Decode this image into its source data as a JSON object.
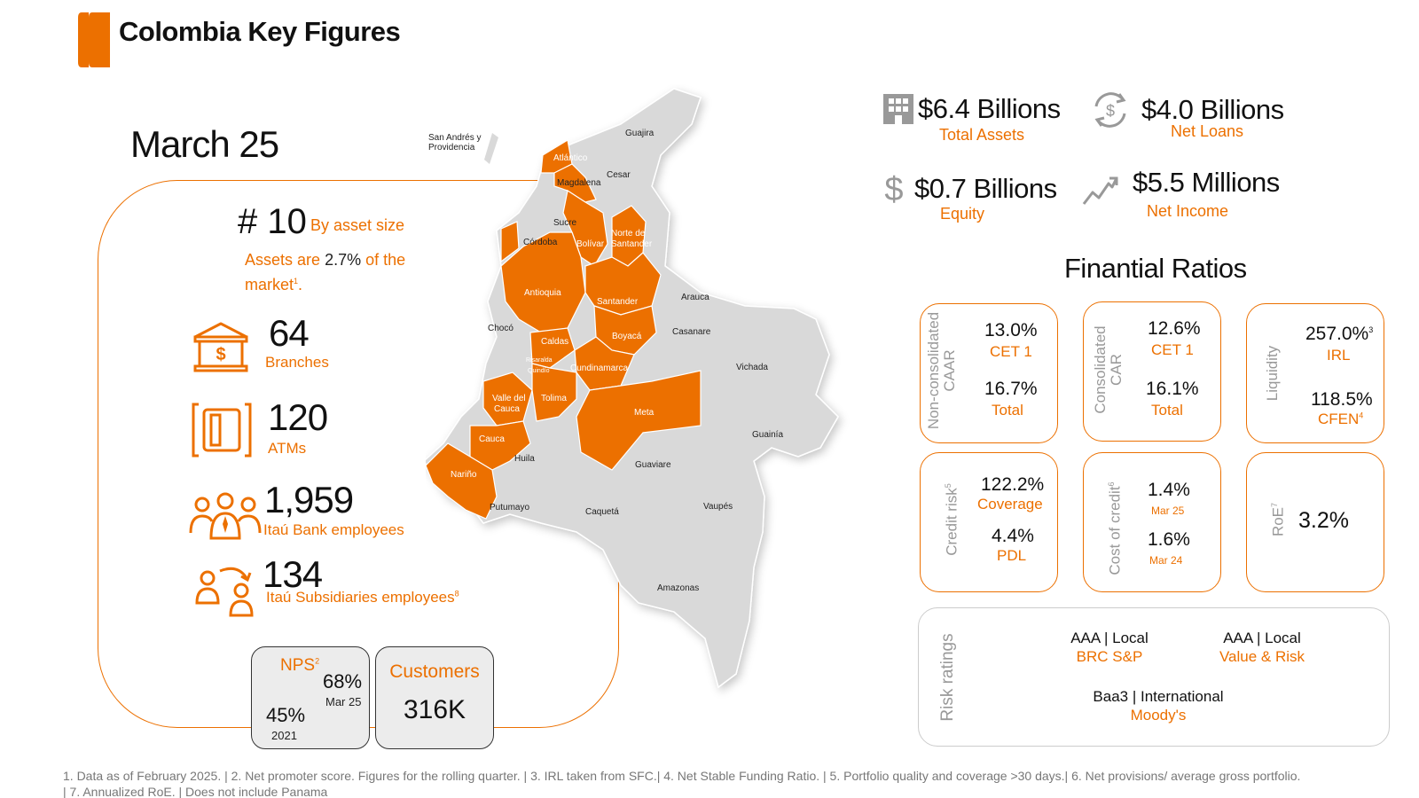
{
  "header": {
    "title": "Colombia Key Figures"
  },
  "period": "March 25",
  "ranking": {
    "rank": "# 10",
    "rank_note": "By asset size",
    "assets_prefix": "Assets are",
    "assets_value": "2.7%",
    "assets_suffix": "of the",
    "assets_line2": "market",
    "assets_note_ref": "1",
    "assets_end": "."
  },
  "branches": {
    "value": "64",
    "label": "Branches"
  },
  "atms": {
    "value": "120",
    "label": "ATMs"
  },
  "employees": {
    "value": "1,959",
    "label": "Itaú Bank employees"
  },
  "subsidiaries": {
    "value": "134",
    "label": "Itaú Subsidiaries employees",
    "note_ref": "8"
  },
  "nps": {
    "label": "NPS",
    "note_ref": "2",
    "current": "68%",
    "current_period": "Mar 25",
    "previous": "45%",
    "previous_period": "2021"
  },
  "customers": {
    "label": "Customers",
    "value": "316K"
  },
  "map": {
    "labels": [
      "San Andrés y",
      "Providencia",
      "Guajira",
      "Atlántico",
      "Magdalena",
      "Cesar",
      "Sucre",
      "Córdoba",
      "Bolívar",
      "Norte de",
      "Santander",
      "Antioquia",
      "Santander",
      "Arauca",
      "Chocó",
      "Caldas",
      "Boyacá",
      "Casanare",
      "Risaralda",
      "Quindío",
      "Cundinamarca",
      "Vichada",
      "Valle del",
      "Cauca",
      "Tolima",
      "Meta",
      "Cauca",
      "Guainía",
      "Huila",
      "Nariño",
      "Guaviare",
      "Putumayo",
      "Caquetá",
      "Vaupés",
      "Amazonas"
    ],
    "highlight_color": "#ec7000",
    "base_color": "#d9d9d9"
  },
  "kpis": [
    {
      "value": "$6.4 Billions",
      "label": "Total Assets",
      "icon": "building-icon"
    },
    {
      "value": "$4.0 Billions",
      "label": "Net Loans",
      "icon": "dollar-cycle-icon"
    },
    {
      "value": "$0.7 Billions",
      "label": "Equity",
      "icon": "dollar-icon"
    },
    {
      "value": "$5.5 Millions",
      "label": "Net Income",
      "icon": "trend-up-icon"
    }
  ],
  "ratios": {
    "title": "Finantial Ratios",
    "non_consolidated": {
      "title_l1": "Non-consolidated",
      "title_l2": "CAAR",
      "v1": "13.0%",
      "l1": "CET 1",
      "v2": "16.7%",
      "l2": "Total"
    },
    "consolidated": {
      "title_l1": "Consolidated",
      "title_l2": "CAR",
      "v1": "12.6%",
      "l1": "CET 1",
      "v2": "16.1%",
      "l2": "Total"
    },
    "liquidity": {
      "title": "Liquidity",
      "v1": "257.0%",
      "v1_ref": "3",
      "l1": "IRL",
      "v2": "118.5%",
      "l2": "CFEN",
      "l2_ref": "4"
    },
    "credit_risk": {
      "title": "Credit risk",
      "ref": "5",
      "v1": "122.2%",
      "l1": "Coverage",
      "v2": "4.4%",
      "l2": "PDL"
    },
    "cost_of_credit": {
      "title": "Cost of credit",
      "ref": "6",
      "v1": "1.4%",
      "l1": "Mar 25",
      "v2": "1.6%",
      "l2": "Mar 24"
    },
    "roe": {
      "title": "RoE",
      "ref": "7",
      "value": "3.2%"
    }
  },
  "risk_ratings": {
    "title": "Risk ratings",
    "items": [
      {
        "value": "AAA | Local",
        "agency": "BRC S&P"
      },
      {
        "value": "AAA | Local",
        "agency": "Value & Risk"
      },
      {
        "value": "Baa3 | International",
        "agency": "Moody's"
      }
    ]
  },
  "footnote": "1. Data as of February  2025. | 2. Net promoter score. Figures for the rolling quarter. | 3. IRL taken from SFC.| 4. Net Stable Funding Ratio. | 5. Portfolio quality and coverage >30 days.| 6. Net provisions/ average gross portfolio. | 7. Annualized RoE. | Does not include Panama"
}
